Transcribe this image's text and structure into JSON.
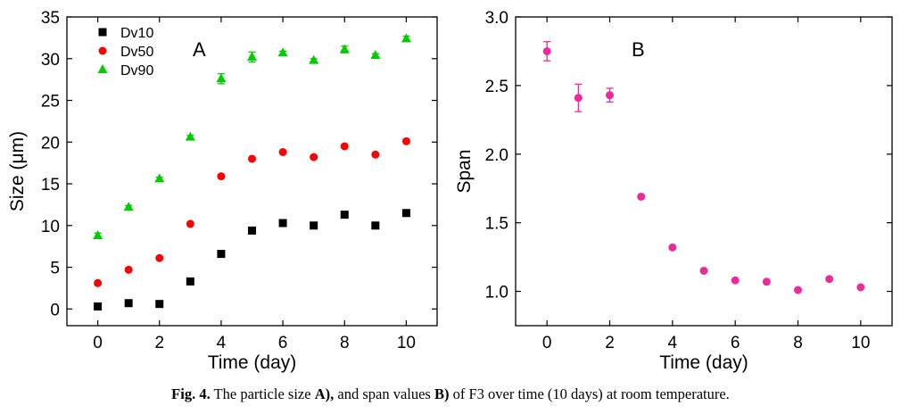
{
  "caption": {
    "prefix": "Fig. 4.",
    "text1": " The particle size ",
    "bold1": "A),",
    "text2": " and span values ",
    "bold2": "B)",
    "text3": " of F3 over time (10 days) at room temperature."
  },
  "chart_data": [
    {
      "type": "scatter",
      "panel_label": "A",
      "xlabel": "Time (day)",
      "ylabel": "Size (μm)",
      "xlim": [
        -1,
        11
      ],
      "ylim": [
        -2,
        35
      ],
      "xticks": [
        0,
        2,
        4,
        6,
        8,
        10
      ],
      "yticks": [
        0,
        5,
        10,
        15,
        20,
        25,
        30,
        35
      ],
      "x": [
        0,
        1,
        2,
        3,
        4,
        5,
        6,
        7,
        8,
        9,
        10
      ],
      "legend_position": "top-left",
      "series": [
        {
          "name": "Dv10",
          "marker": "square",
          "color": "#000000",
          "values": [
            0.3,
            0.7,
            0.6,
            3.3,
            6.6,
            9.4,
            10.3,
            10.0,
            11.3,
            10.0,
            11.5
          ]
        },
        {
          "name": "Dv50",
          "marker": "circle",
          "color": "#ff0000",
          "values": [
            3.1,
            4.7,
            6.1,
            10.2,
            15.9,
            18.0,
            18.8,
            18.2,
            19.5,
            18.5,
            20.1
          ]
        },
        {
          "name": "Dv90",
          "marker": "triangle",
          "color": "#00cc00",
          "values": [
            8.8,
            12.2,
            15.6,
            20.6,
            27.6,
            30.2,
            30.7,
            29.8,
            31.1,
            30.4,
            32.4
          ],
          "errors": [
            0.3,
            0.2,
            0.2,
            0.2,
            0.6,
            0.6,
            0.2,
            0.2,
            0.4,
            0.2,
            0.3
          ]
        }
      ]
    },
    {
      "type": "scatter",
      "panel_label": "B",
      "xlabel": "Time (day)",
      "ylabel": "Span",
      "xlim": [
        -1,
        11
      ],
      "ylim": [
        0.75,
        3.0
      ],
      "xticks": [
        0,
        2,
        4,
        6,
        8,
        10
      ],
      "yticks": [
        1.0,
        1.5,
        2.0,
        2.5,
        3.0
      ],
      "ytick_labels": [
        "1.0",
        "1.5",
        "2.0",
        "2.5",
        "3.0"
      ],
      "x": [
        0,
        1,
        2,
        3,
        4,
        5,
        6,
        7,
        8,
        9,
        10
      ],
      "series": [
        {
          "marker": "circle",
          "color": "#ee2a9b",
          "values": [
            2.75,
            2.41,
            2.43,
            1.69,
            1.32,
            1.15,
            1.08,
            1.07,
            1.01,
            1.09,
            1.03
          ],
          "errors": [
            0.07,
            0.1,
            0.05,
            0.0,
            0.0,
            0.0,
            0.0,
            0.0,
            0.0,
            0.0,
            0.0
          ]
        }
      ]
    }
  ]
}
